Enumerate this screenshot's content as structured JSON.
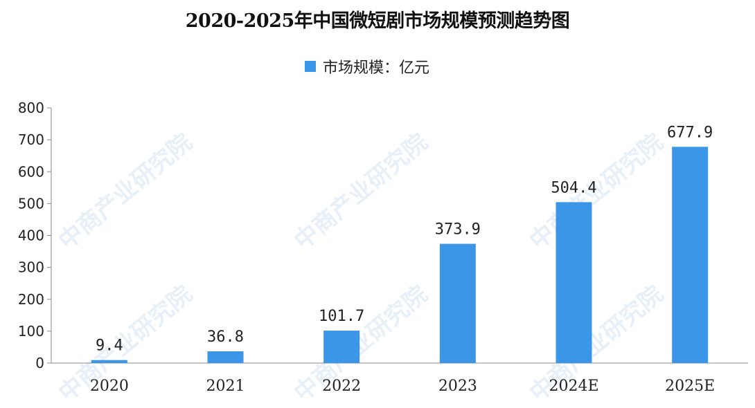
{
  "chart_data": {
    "type": "bar",
    "title": "2020-2025年中国微短剧市场规模预测趋势图",
    "legend": {
      "label": "市场规模：亿元",
      "position": "top-center",
      "color": "#3c96e8"
    },
    "categories": [
      "2020",
      "2021",
      "2022",
      "2023",
      "2024E",
      "2025E"
    ],
    "series": [
      {
        "name": "市场规模：亿元",
        "values": [
          9.4,
          36.8,
          101.7,
          373.9,
          504.4,
          677.9
        ]
      }
    ],
    "data_labels": [
      "9.4",
      "36.8",
      "101.7",
      "373.9",
      "504.4",
      "677.9"
    ],
    "ylim": [
      0,
      800
    ],
    "yticks": [
      "0",
      "100",
      "200",
      "300",
      "400",
      "500",
      "600",
      "700",
      "800"
    ],
    "xlabel": "",
    "ylabel": "",
    "grid": false
  },
  "watermark": {
    "text": "中商产业研究院"
  }
}
